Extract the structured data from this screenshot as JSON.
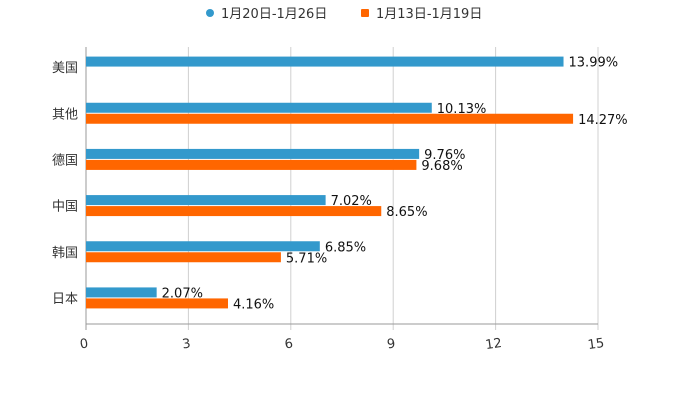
{
  "chart_data": {
    "type": "bar",
    "orientation": "horizontal",
    "categories": [
      "美国",
      "其他",
      "德国",
      "中国",
      "韩国",
      "日本"
    ],
    "series": [
      {
        "name": "1月20日-1月26日",
        "color": "#3399cc",
        "values": [
          13.99,
          10.13,
          9.76,
          7.02,
          6.85,
          2.07
        ],
        "labels": [
          "13.99%",
          "10.13%",
          "9.76%",
          "7.02%",
          "6.85%",
          "2.07%"
        ]
      },
      {
        "name": "1月13日-1月19日",
        "color": "#ff6600",
        "values": [
          null,
          14.27,
          9.68,
          8.65,
          5.71,
          4.16
        ],
        "labels": [
          "",
          "14.27%",
          "9.68%",
          "8.65%",
          "5.71%",
          "4.16%"
        ]
      }
    ],
    "xlim": [
      0,
      15
    ],
    "xticks": [
      0,
      3,
      6,
      9,
      12,
      15
    ],
    "grid": true,
    "legend_position": "top-center",
    "title": "",
    "xlabel": "",
    "ylabel": ""
  }
}
